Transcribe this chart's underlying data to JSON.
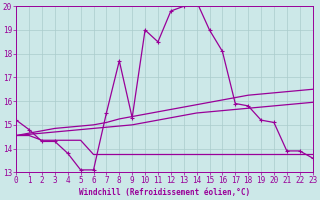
{
  "xlabel": "Windchill (Refroidissement éolien,°C)",
  "background_color": "#cce8e8",
  "grid_color": "#aacccc",
  "line_color": "#990099",
  "xlim": [
    0,
    23
  ],
  "ylim": [
    13,
    20
  ],
  "yticks": [
    13,
    14,
    15,
    16,
    17,
    18,
    19,
    20
  ],
  "xticks": [
    0,
    1,
    2,
    3,
    4,
    5,
    6,
    7,
    8,
    9,
    10,
    11,
    12,
    13,
    14,
    15,
    16,
    17,
    18,
    19,
    20,
    21,
    22,
    23
  ],
  "series": [
    [
      15.2,
      14.8,
      14.3,
      14.3,
      13.8,
      13.1,
      13.1,
      15.5,
      17.7,
      15.3,
      19.0,
      18.5,
      19.8,
      20.0,
      20.2,
      19.0,
      18.1,
      15.9,
      15.8,
      15.2,
      15.1,
      13.9,
      13.9,
      13.6
    ],
    [
      14.55,
      14.55,
      14.35,
      14.35,
      14.35,
      14.35,
      13.75,
      13.75,
      13.75,
      13.75,
      13.75,
      13.75,
      13.75,
      13.75,
      13.75,
      13.75,
      13.75,
      13.75,
      13.75,
      13.75,
      13.75,
      13.75,
      13.75,
      13.75
    ],
    [
      14.55,
      14.6,
      14.65,
      14.7,
      14.75,
      14.8,
      14.85,
      14.9,
      14.95,
      15.0,
      15.1,
      15.2,
      15.3,
      15.4,
      15.5,
      15.55,
      15.6,
      15.65,
      15.7,
      15.75,
      15.8,
      15.85,
      15.9,
      15.95
    ],
    [
      14.55,
      14.65,
      14.75,
      14.85,
      14.9,
      14.95,
      15.0,
      15.1,
      15.25,
      15.35,
      15.45,
      15.55,
      15.65,
      15.75,
      15.85,
      15.95,
      16.05,
      16.15,
      16.25,
      16.3,
      16.35,
      16.4,
      16.45,
      16.5
    ]
  ]
}
